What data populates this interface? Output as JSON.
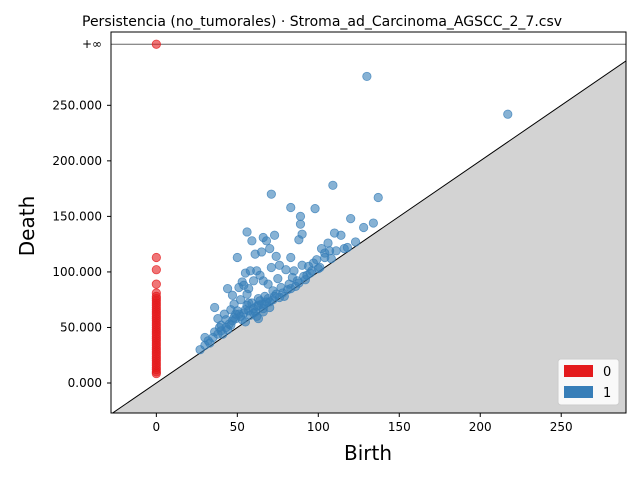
{
  "chart_data": {
    "type": "scatter",
    "title": "Persistencia (no_tumorales) · Stroma_ad_Carcinoma_AGSCC_2_7.csv",
    "xlabel": "Birth",
    "ylabel": "Death",
    "xlim": [
      -28,
      290
    ],
    "ylim": [
      -27000,
      316000
    ],
    "xticks": [
      0,
      50,
      100,
      150,
      200,
      250
    ],
    "xtick_labels": [
      "0",
      "50",
      "100",
      "150",
      "200",
      "250"
    ],
    "yticks": [
      0,
      50000,
      100000,
      150000,
      200000,
      250000
    ],
    "ytick_labels": [
      "0.000",
      "50.000",
      "100.000",
      "150.000",
      "200.000",
      "250.000"
    ],
    "infinity_label": "+∞",
    "infinity_value": 305000,
    "grid": false,
    "legend_position": "lower-right",
    "diagonal": true,
    "series": [
      {
        "name": "0",
        "color": "#e41a1c",
        "points": [
          [
            0,
            305000
          ],
          [
            0,
            113000
          ],
          [
            0,
            102000
          ],
          [
            0,
            89000
          ],
          [
            0,
            81000
          ],
          [
            0,
            78000
          ],
          [
            0,
            76000
          ],
          [
            0,
            74000
          ],
          [
            0,
            72000
          ],
          [
            0,
            70000
          ],
          [
            0,
            68000
          ],
          [
            0,
            66000
          ],
          [
            0,
            64000
          ],
          [
            0,
            62000
          ],
          [
            0,
            60000
          ],
          [
            0,
            58000
          ],
          [
            0,
            56000
          ],
          [
            0,
            54000
          ],
          [
            0,
            52000
          ],
          [
            0,
            50000
          ],
          [
            0,
            48000
          ],
          [
            0,
            46000
          ],
          [
            0,
            44000
          ],
          [
            0,
            42000
          ],
          [
            0,
            40000
          ],
          [
            0,
            38000
          ],
          [
            0,
            36000
          ],
          [
            0,
            34000
          ],
          [
            0,
            32000
          ],
          [
            0,
            30000
          ],
          [
            0,
            28000
          ],
          [
            0,
            26000
          ],
          [
            0,
            24000
          ],
          [
            0,
            22000
          ],
          [
            0,
            20000
          ],
          [
            0,
            18000
          ],
          [
            0,
            16000
          ],
          [
            0,
            14000
          ],
          [
            0,
            12000
          ],
          [
            0,
            10000
          ],
          [
            0,
            8500
          ]
        ]
      },
      {
        "name": "1",
        "color": "#377eb8",
        "points": [
          [
            130,
            276000
          ],
          [
            217,
            242000
          ],
          [
            71,
            170000
          ],
          [
            109,
            178000
          ],
          [
            137,
            167000
          ],
          [
            83,
            158000
          ],
          [
            98,
            157000
          ],
          [
            56,
            136000
          ],
          [
            89,
            150000
          ],
          [
            120,
            148000
          ],
          [
            134,
            144000
          ],
          [
            89,
            143000
          ],
          [
            128,
            140000
          ],
          [
            66,
            131000
          ],
          [
            73,
            133000
          ],
          [
            90,
            134000
          ],
          [
            110,
            135000
          ],
          [
            59,
            128000
          ],
          [
            68,
            128000
          ],
          [
            88,
            129000
          ],
          [
            114,
            133000
          ],
          [
            106,
            126000
          ],
          [
            123,
            127000
          ],
          [
            102,
            121000
          ],
          [
            116,
            121000
          ],
          [
            65,
            118000
          ],
          [
            70,
            121000
          ],
          [
            61,
            116000
          ],
          [
            74,
            114000
          ],
          [
            83,
            113000
          ],
          [
            50,
            113000
          ],
          [
            99,
            111000
          ],
          [
            104,
            117000
          ],
          [
            107,
            119000
          ],
          [
            108,
            112000
          ],
          [
            55,
            99000
          ],
          [
            58,
            101000
          ],
          [
            62,
            101000
          ],
          [
            71,
            104000
          ],
          [
            76,
            106000
          ],
          [
            80,
            102000
          ],
          [
            85,
            101000
          ],
          [
            90,
            106000
          ],
          [
            94,
            105000
          ],
          [
            97,
            108000
          ],
          [
            44,
            85000
          ],
          [
            47,
            79000
          ],
          [
            51,
            86000
          ],
          [
            53,
            91000
          ],
          [
            57,
            85000
          ],
          [
            60,
            92000
          ],
          [
            66,
            92000
          ],
          [
            69,
            89000
          ],
          [
            75,
            94000
          ],
          [
            77,
            86000
          ],
          [
            82,
            89000
          ],
          [
            87,
            92000
          ],
          [
            91,
            96000
          ],
          [
            96,
            101000
          ],
          [
            101,
            104000
          ],
          [
            36,
            68000
          ],
          [
            42,
            62000
          ],
          [
            46,
            66000
          ],
          [
            48,
            71000
          ],
          [
            52,
            75000
          ],
          [
            56,
            80000
          ],
          [
            59,
            72000
          ],
          [
            63,
            76000
          ],
          [
            67,
            78000
          ],
          [
            70,
            73000
          ],
          [
            73,
            78000
          ],
          [
            78,
            81000
          ],
          [
            81,
            84000
          ],
          [
            86,
            87000
          ],
          [
            92,
            93000
          ],
          [
            27,
            30000
          ],
          [
            30,
            34000
          ],
          [
            32,
            38000
          ],
          [
            35,
            41000
          ],
          [
            38,
            44000
          ],
          [
            40,
            47000
          ],
          [
            43,
            50000
          ],
          [
            45,
            53000
          ],
          [
            47,
            56000
          ],
          [
            49,
            58000
          ],
          [
            52,
            60000
          ],
          [
            54,
            63000
          ],
          [
            57,
            65000
          ],
          [
            60,
            67000
          ],
          [
            62,
            69000
          ],
          [
            65,
            71000
          ],
          [
            68,
            73000
          ],
          [
            72,
            75000
          ],
          [
            30,
            41000
          ],
          [
            33,
            36000
          ],
          [
            36,
            46000
          ],
          [
            39,
            50000
          ],
          [
            41,
            44000
          ],
          [
            44,
            48000
          ],
          [
            46,
            52000
          ],
          [
            48,
            59000
          ],
          [
            51,
            62000
          ],
          [
            53,
            57000
          ],
          [
            55,
            66000
          ],
          [
            58,
            61000
          ],
          [
            61,
            64000
          ],
          [
            63,
            70000
          ],
          [
            66,
            67000
          ],
          [
            69,
            76000
          ],
          [
            38,
            58000
          ],
          [
            43,
            57000
          ],
          [
            50,
            65000
          ],
          [
            56,
            70000
          ],
          [
            64,
            74000
          ],
          [
            40,
            52000
          ],
          [
            55,
            55000
          ],
          [
            60,
            63000
          ],
          [
            62,
            60000
          ],
          [
            67,
            71000
          ],
          [
            74,
            80000
          ],
          [
            79,
            78000
          ],
          [
            84,
            95000
          ],
          [
            93,
            97000
          ],
          [
            100,
            103000
          ],
          [
            104,
            113000
          ],
          [
            111,
            119000
          ],
          [
            118,
            122000
          ],
          [
            54,
            88000
          ],
          [
            64,
            97000
          ],
          [
            72,
            83000
          ],
          [
            49,
            62000
          ],
          [
            57,
            72000
          ],
          [
            63,
            58000
          ],
          [
            66,
            64000
          ],
          [
            70,
            68000
          ],
          [
            76,
            77000
          ],
          [
            83,
            85000
          ],
          [
            88,
            90000
          ],
          [
            95,
            99000
          ]
        ]
      }
    ]
  }
}
